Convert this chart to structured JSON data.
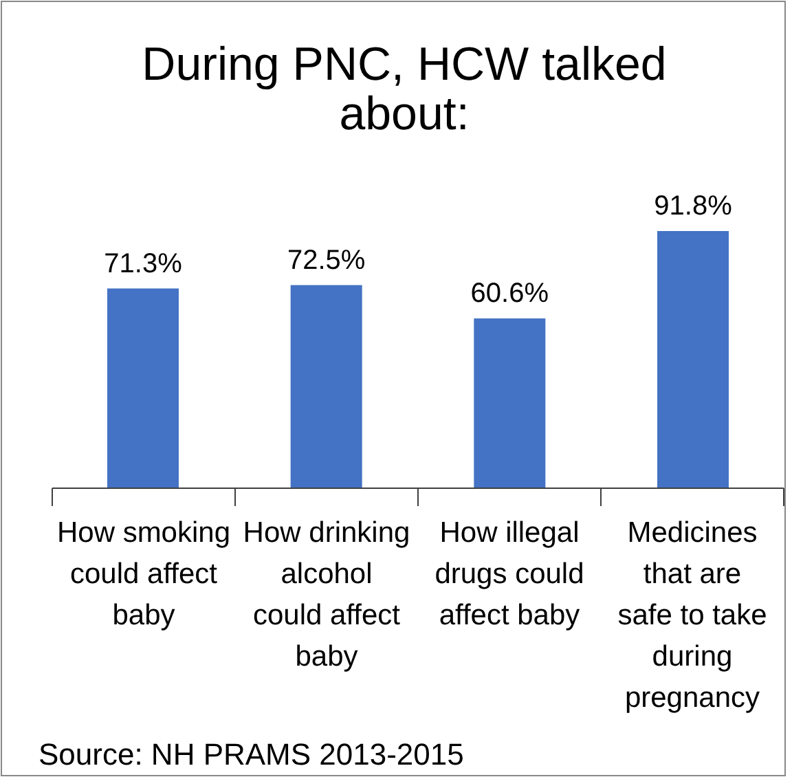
{
  "chart_data": {
    "type": "bar",
    "title": "During PNC, HCW talked about:",
    "categories": [
      "How smoking could affect baby",
      "How drinking alcohol could affect baby",
      "How illegal drugs could affect baby",
      "Medicines that are safe to take during pregnancy"
    ],
    "values": [
      71.3,
      72.5,
      60.6,
      91.8
    ],
    "color": "#4472c4",
    "value_labels": [
      "71.3%",
      "72.5%",
      "60.6%",
      "91.8%"
    ],
    "annotations": [
      "Source: NH PRAMS 2013-2015"
    ]
  }
}
